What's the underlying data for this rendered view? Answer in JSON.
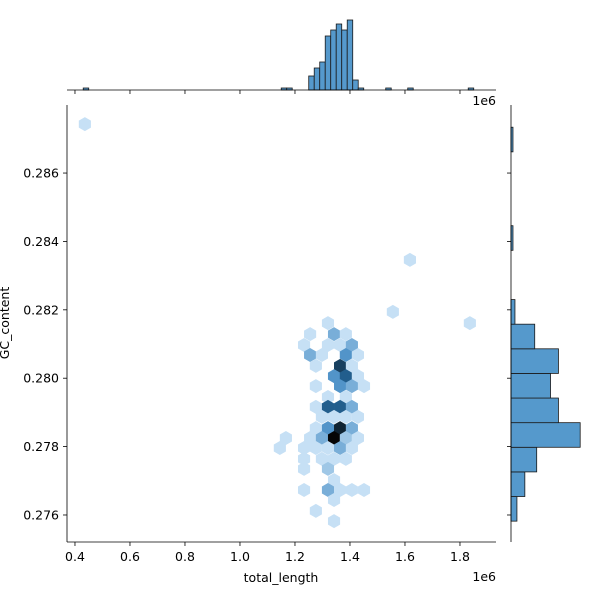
{
  "chart_data": [
    {
      "type": "hexbin",
      "x_label": "total_length",
      "y_label": "GC_content",
      "x_offset_label": "1e6",
      "xlim": [
        0.371,
        1.931
      ],
      "ylim": [
        0.27521,
        0.28799
      ],
      "xticks": [
        {
          "value": 0.4,
          "label": "0.4"
        },
        {
          "value": 0.6,
          "label": "0.6"
        },
        {
          "value": 0.8,
          "label": "0.8"
        },
        {
          "value": 1.0,
          "label": "1.0"
        },
        {
          "value": 1.2,
          "label": "1.2"
        },
        {
          "value": 1.4,
          "label": "1.4"
        },
        {
          "value": 1.6,
          "label": "1.6"
        },
        {
          "value": 1.8,
          "label": "1.8"
        }
      ],
      "yticks": [
        {
          "value": 0.276,
          "label": "0.276"
        },
        {
          "value": 0.278,
          "label": "0.278"
        },
        {
          "value": 0.28,
          "label": "0.280"
        },
        {
          "value": 0.282,
          "label": "0.282"
        },
        {
          "value": 0.284,
          "label": "0.284"
        },
        {
          "value": 0.286,
          "label": "0.286"
        }
      ],
      "cmap": [
        "#c6e0f5",
        "#2b7bba",
        "#050505"
      ],
      "count_range": [
        1,
        9
      ],
      "x": [
        0.436,
        1.618,
        1.556,
        1.836,
        1.32,
        1.255,
        1.342,
        1.385,
        1.233,
        1.32,
        1.364,
        1.407,
        1.255,
        1.298,
        1.385,
        1.429,
        1.276,
        1.364,
        1.407,
        1.342,
        1.385,
        1.429,
        1.276,
        1.364,
        1.407,
        1.451,
        1.32,
        1.385,
        1.276,
        1.32,
        1.364,
        1.407,
        1.298,
        1.342,
        1.385,
        1.429,
        1.276,
        1.32,
        1.364,
        1.407,
        1.167,
        1.255,
        1.298,
        1.342,
        1.385,
        1.429,
        1.145,
        1.233,
        1.276,
        1.32,
        1.364,
        1.407,
        1.233,
        1.298,
        1.342,
        1.385,
        1.233,
        1.32,
        1.342,
        1.233,
        1.32,
        1.364,
        1.407,
        1.451,
        1.342,
        1.276,
        1.342
      ],
      "y": [
        0.28743,
        0.28346,
        0.28194,
        0.28161,
        0.28161,
        0.28129,
        0.28129,
        0.28129,
        0.28097,
        0.28097,
        0.28097,
        0.28097,
        0.28068,
        0.28068,
        0.28068,
        0.28068,
        0.28036,
        0.28036,
        0.28036,
        0.28006,
        0.28006,
        0.28006,
        0.27977,
        0.27977,
        0.27977,
        0.27977,
        0.27945,
        0.27945,
        0.27916,
        0.27916,
        0.27916,
        0.27916,
        0.27887,
        0.27887,
        0.27887,
        0.27887,
        0.27854,
        0.27854,
        0.27854,
        0.27854,
        0.27825,
        0.27825,
        0.27825,
        0.27825,
        0.27825,
        0.27825,
        0.27796,
        0.27796,
        0.27796,
        0.27796,
        0.27796,
        0.27796,
        0.27764,
        0.27764,
        0.27764,
        0.27764,
        0.27735,
        0.27735,
        0.27702,
        0.27673,
        0.27673,
        0.27673,
        0.27673,
        0.27673,
        0.27644,
        0.27612,
        0.27582
      ],
      "counts": [
        1,
        1,
        1,
        1,
        1,
        1,
        3,
        1,
        1,
        1,
        1,
        3,
        3,
        1,
        4,
        1,
        1,
        7,
        1,
        4,
        6,
        1,
        1,
        4,
        3,
        1,
        1,
        1,
        1,
        6,
        6,
        3,
        1,
        1,
        1,
        1,
        1,
        4,
        8,
        3,
        1,
        1,
        3,
        9,
        2,
        1,
        1,
        1,
        1,
        1,
        3,
        1,
        1,
        1,
        1,
        1,
        1,
        2,
        1,
        1,
        3,
        1,
        1,
        1,
        1,
        1,
        1
      ]
    },
    {
      "type": "histogram",
      "orientation": "vertical",
      "color": "#5599cc",
      "edgecolor": "#1a1a1a",
      "ylim": [
        0,
        37
      ],
      "bins": [
        0.43,
        0.45,
        0.47,
        0.49,
        0.51,
        0.53,
        0.55,
        0.57,
        0.59,
        0.61,
        0.63,
        0.65,
        0.67,
        0.69,
        0.71,
        0.73,
        0.75,
        0.77,
        0.79,
        0.81,
        0.83,
        0.85,
        0.87,
        0.89,
        0.91,
        0.93,
        0.95,
        0.97,
        0.99,
        1.01,
        1.03,
        1.05,
        1.07,
        1.09,
        1.11,
        1.13,
        1.15,
        1.17,
        1.19,
        1.21,
        1.23,
        1.25,
        1.27,
        1.29,
        1.31,
        1.33,
        1.35,
        1.37,
        1.39,
        1.41,
        1.43,
        1.45,
        1.47,
        1.49,
        1.51,
        1.53,
        1.55,
        1.57,
        1.59,
        1.61,
        1.63,
        1.65,
        1.67,
        1.69,
        1.71,
        1.73,
        1.75,
        1.77,
        1.79,
        1.81,
        1.83,
        1.85,
        1.87
      ],
      "counts": [
        1,
        0,
        0,
        0,
        0,
        0,
        0,
        0,
        0,
        0,
        0,
        0,
        0,
        0,
        0,
        0,
        0,
        0,
        0,
        0,
        0,
        0,
        0,
        0,
        0,
        0,
        0,
        0,
        0,
        0,
        0,
        0,
        0,
        0,
        0,
        0,
        1,
        1,
        0,
        0,
        0,
        7,
        11,
        14,
        27,
        30,
        33,
        30,
        35,
        5,
        1,
        0,
        0,
        0,
        0,
        1,
        0,
        0,
        0,
        1,
        0,
        0,
        0,
        0,
        0,
        0,
        0,
        0,
        0,
        0,
        1,
        0
      ]
    },
    {
      "type": "histogram",
      "orientation": "horizontal",
      "color": "#5599cc",
      "edgecolor": "#1a1a1a",
      "xlim": [
        0,
        43
      ],
      "bins": [
        0.27582,
        0.27654,
        0.27726,
        0.27798,
        0.2787,
        0.27942,
        0.28014,
        0.28086,
        0.28158,
        0.2823,
        0.28302,
        0.28374,
        0.28446,
        0.28518,
        0.2859,
        0.28662,
        0.28734
      ],
      "counts": [
        3,
        7,
        13,
        35,
        24,
        20,
        24,
        12,
        2,
        0,
        0,
        1,
        0,
        0,
        0,
        1
      ]
    }
  ]
}
